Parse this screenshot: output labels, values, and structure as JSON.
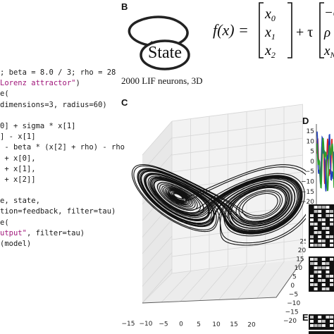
{
  "panel_labels": {
    "b": "B",
    "c": "C",
    "d": "D",
    "e": "E"
  },
  "code_lines": [
    {
      "pre": "; beta = 8.0 / 3; rho = 28",
      "str": "",
      "post": ""
    },
    {
      "pre": "",
      "str": "Lorenz attractor\"",
      "post": ")"
    },
    {
      "pre": "e(",
      "str": "",
      "post": ""
    },
    {
      "pre": "dimensions=3, radius=60)",
      "str": "",
      "post": ""
    },
    {
      "pre": "",
      "str": "",
      "post": ""
    },
    {
      "pre": "0] + sigma * x[1]",
      "str": "",
      "post": ""
    },
    {
      "pre": "] - x[1]",
      "str": "",
      "post": ""
    },
    {
      "pre": " - beta * (x[2] + rho) - rho",
      "str": "",
      "post": ""
    },
    {
      "pre": " + x[0],",
      "str": "",
      "post": ""
    },
    {
      "pre": " + x[1],",
      "str": "",
      "post": ""
    },
    {
      "pre": " + x[2]]",
      "str": "",
      "post": ""
    },
    {
      "pre": "",
      "str": "",
      "post": ""
    },
    {
      "pre": "e, state,",
      "str": "",
      "post": ""
    },
    {
      "pre": "tion=feedback, filter=tau)",
      "str": "",
      "post": ""
    },
    {
      "pre": "e(",
      "str": "",
      "post": ""
    },
    {
      "pre": "",
      "str": "utput\"",
      "post": ", filter=tau)"
    },
    {
      "pre": "(model)",
      "str": "",
      "post": ""
    }
  ],
  "diagram": {
    "state_label": "State",
    "caption": "2000 LIF neurons, 3D"
  },
  "equation": {
    "lhs": "f(x) =",
    "vector": [
      "x0",
      "x1",
      "x2"
    ],
    "plus_tau": "+ τ",
    "right_vector": [
      "−σ",
      "ρ",
      "xN"
    ]
  },
  "chart_c": {
    "type": "scatter",
    "x_ticks": [
      "−15",
      "−10",
      "−5",
      "0",
      "5",
      "10",
      "15",
      "20"
    ],
    "y_ticks": [
      "−20",
      "−15",
      "−10",
      "−5",
      "0",
      "5",
      "10",
      "15",
      "20",
      "25"
    ]
  },
  "chart_d": {
    "type": "line",
    "y_ticks": [
      "15",
      "10",
      "5",
      "0",
      "−5",
      "−10",
      "−15",
      "−20"
    ],
    "series_colors": [
      "#d62728",
      "#1f3fbf",
      "#2ca02c"
    ]
  }
}
